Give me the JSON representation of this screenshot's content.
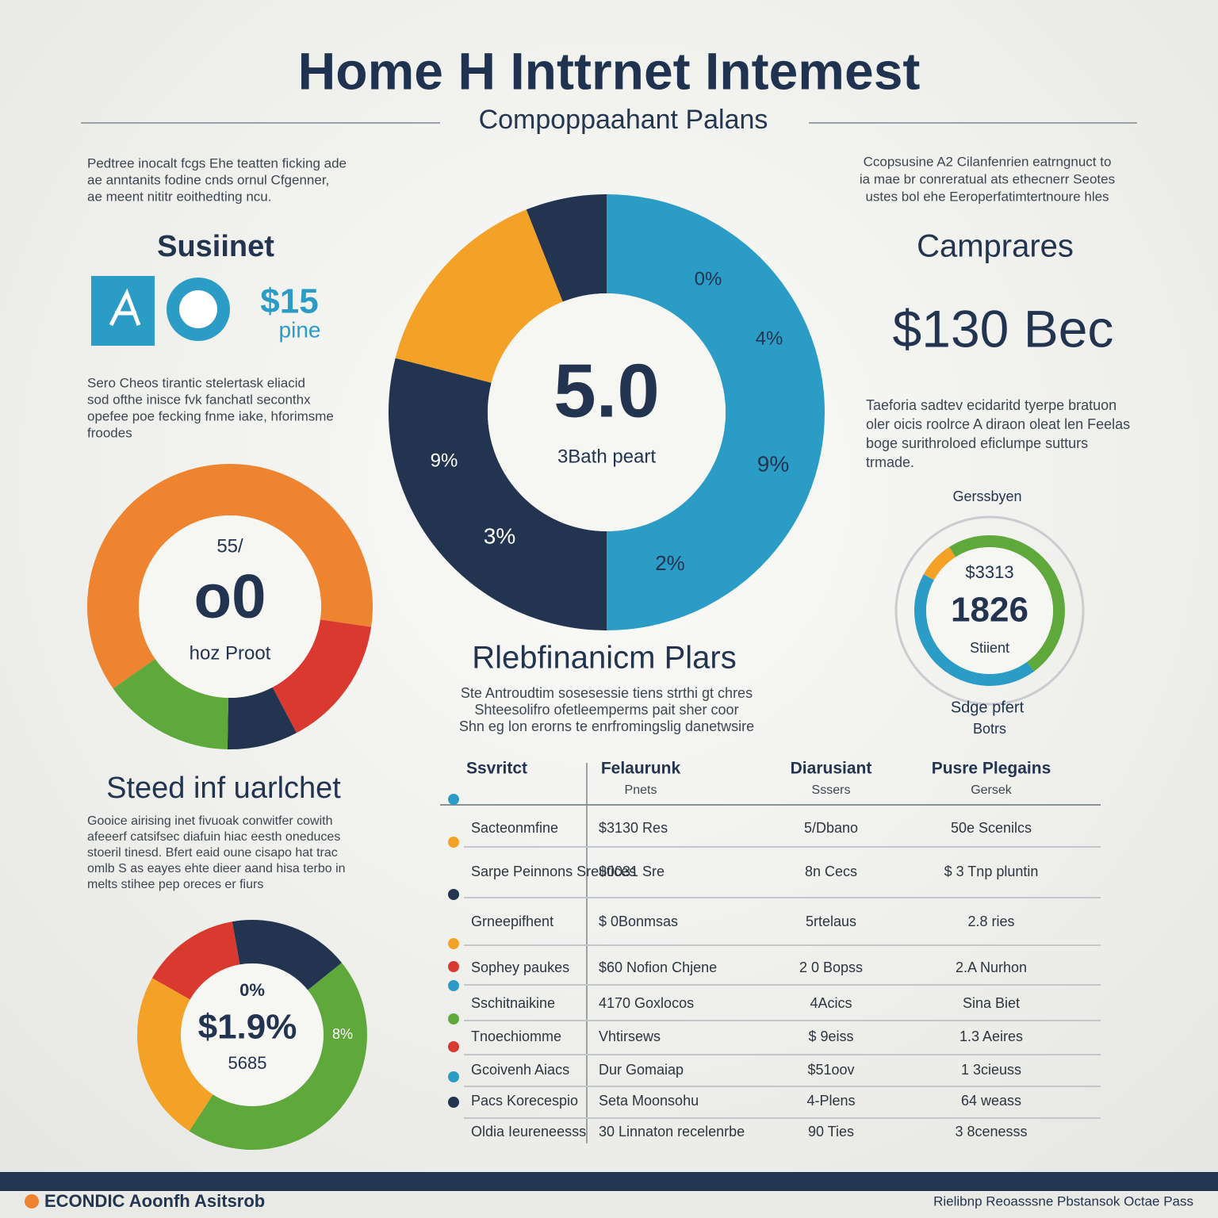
{
  "header": {
    "title": "Home H Inttrnet Intemest",
    "subtitle": "Compoppaahant Palans"
  },
  "left": {
    "intro": [
      "Pedtree inocalt fcgs Ehe teatten ficking ade",
      "ae anntanits fodine cnds ornul Cfgenner,",
      "ae meent nititr eoithedting ncu."
    ],
    "heading": "Susiinet",
    "price": "$15",
    "price_note": "pine",
    "body": [
      "Sero Cheos tirantic stelertask eliacid",
      "sod ofthe inisce fvk fanchatl seconthx",
      "opefee poe fecking fnme iake, hforimsme",
      "froodes"
    ],
    "heading2": "Steed inf uarlchet",
    "body2": [
      "Gooice airising inet fivuoak conwitfer cowith",
      "afeeerf catsifsec diafuin hiac eesth oneduces",
      "stoeril tinesd. Bfert eaid oune cisapo hat trac",
      "omlb S as eayes ehte dieer aand hisa terbo in",
      "melts stihee pep oreces er fiurs"
    ]
  },
  "right": {
    "intro": [
      "Ccopsusine A2 Cilanfenrien eatrngnuct to",
      "ia mae br conreratual ats ethecnerr Seotes",
      "ustes bol ehe Eeroperfatimtertnoure hles"
    ],
    "heading": "Camprares",
    "price": "$130 Bec",
    "body": [
      "Taeforia sadtev ecidaritd tyerpe bratuon",
      "oler oicis roolrce A diraon oleat len Feelas",
      "boge surithroloed eficlumpe sutturs",
      "trmade."
    ]
  },
  "middle": {
    "heading": "Rlebfinanicm Plars",
    "body": [
      "Ste Antroudtim sosesessie tiens strthi gt chres",
      "Shteesolifro ofetleemperms pait sher coor",
      "Shn eg lon erorns te enrfromingslig danetwsire"
    ]
  },
  "table": {
    "columns": [
      {
        "title": "Ssvritct"
      },
      {
        "title": "Felaurunk",
        "sub": "Pnets"
      },
      {
        "title": "Diarusiant",
        "sub": "Sssers"
      },
      {
        "title": "Pusre Plegains",
        "sub": "Gersek"
      }
    ],
    "rows": [
      [
        "Sacteonmfine",
        "$3130 Res",
        "5/Dbano",
        "50e Scenilcs"
      ],
      [
        "Sarpe Peinnons Sreutices",
        "$0031 Sre",
        "8n Cecs",
        "$ 3 Tnp pluntin"
      ],
      [
        "Grneepifhent",
        "$ 0Bonmsas",
        "5rtelaus",
        "2.8 ries"
      ],
      [
        "Sophey paukes",
        "$60 Nofion Chjene",
        "2 0 Bopss",
        "2.A Nurhon"
      ],
      [
        "Sschitnaikine",
        "4170 Goxlocos",
        "4Acics",
        "Sina Biet"
      ],
      [
        "Tnoechiomme",
        "Vhtirsews",
        "$ 9eiss",
        "1.3 Aeires"
      ],
      [
        "Gcoivenh Aiacs",
        "Dur Gomaiap",
        "$51oov",
        "1 3cieuss"
      ],
      [
        "Pacs Korecespio",
        "Seta Moonsohu",
        "4-Plens",
        "64 weass"
      ],
      [
        "Oldia Ieureneesss",
        "30 Linnaton recelenrbe",
        "90 Ties",
        "3 8cenesss"
      ]
    ]
  },
  "footer": {
    "brand": "ECONDIC Aoonfh Asitsrob",
    "note": "Rielibnp Reoasssne Pbstansok Octae Pass"
  },
  "chart_data": [
    {
      "type": "donut",
      "values": [
        50,
        29,
        15,
        6
      ],
      "colors": [
        "#2b9cc6",
        "#22344f",
        "#f4a227",
        "#22344f"
      ],
      "center_texts": [
        "5.0",
        "3Bath peart"
      ],
      "ring_labels": [
        "%",
        "0%",
        "4%",
        "9%",
        "9%",
        "3%",
        "2%"
      ]
    },
    {
      "type": "donut",
      "values": [
        62,
        15,
        8,
        15
      ],
      "colors": [
        "#ee8430",
        "#d9392f",
        "#22344f",
        "#5ea83c"
      ],
      "center_texts": [
        "55/",
        "o0",
        "hoz Proot"
      ]
    },
    {
      "type": "donut",
      "values": [
        17,
        45,
        24,
        14
      ],
      "colors": [
        "#22344f",
        "#5ea83c",
        "#f4a227",
        "#d9392f"
      ],
      "center_texts": [
        "0%",
        "$1.9%",
        "5685"
      ],
      "ring_labels": [
        "8%"
      ]
    },
    {
      "type": "donut",
      "values": [
        40,
        43,
        8,
        9
      ],
      "colors": [
        "#5ea83c",
        "#2b9cc6",
        "#f4a227",
        "#5ea83c"
      ],
      "center_texts": [
        "$3313",
        "1826",
        "Stiient"
      ],
      "ring_labels": [
        "Gerssbyen",
        "Sdge pfert",
        "Botrs"
      ]
    }
  ]
}
